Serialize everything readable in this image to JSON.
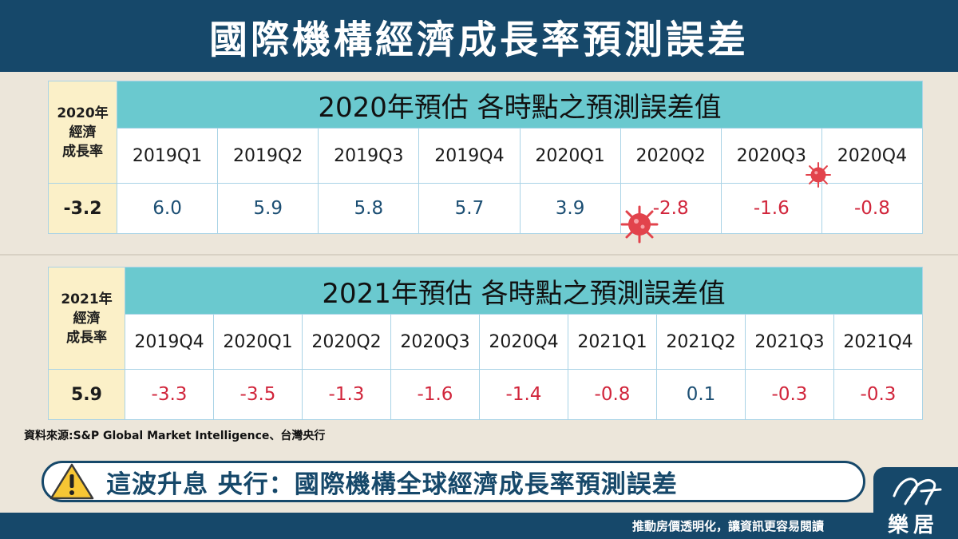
{
  "header": {
    "title": "國際機構經濟成長率預測誤差"
  },
  "table2020": {
    "corner": [
      "2020年",
      "經濟",
      "成長率"
    ],
    "title": "2020年預估 各時點之預測誤差值",
    "base": "-3.2",
    "quarters": [
      "2019Q1",
      "2019Q2",
      "2019Q3",
      "2019Q4",
      "2020Q1",
      "2020Q2",
      "2020Q3",
      "2020Q4"
    ],
    "values": [
      "6.0",
      "5.9",
      "5.8",
      "5.7",
      "3.9",
      "-2.8",
      "-1.6",
      "-0.8"
    ]
  },
  "table2021": {
    "corner": [
      "2021年",
      "經濟",
      "成長率"
    ],
    "title": "2021年預估 各時點之預測誤差值",
    "base": "5.9",
    "quarters": [
      "2019Q4",
      "2020Q1",
      "2020Q2",
      "2020Q3",
      "2020Q4",
      "2021Q1",
      "2021Q2",
      "2021Q3",
      "2021Q4"
    ],
    "values": [
      "-3.3",
      "-3.5",
      "-1.3",
      "-1.6",
      "-1.4",
      "-0.8",
      "0.1",
      "-0.3",
      "-0.3"
    ]
  },
  "source": "資料來源:S&P Global Market Intelligence、台灣央行",
  "banner": {
    "icon": "warning-icon",
    "text": "這波升息 央行：國際機構全球經濟成長率預測誤差"
  },
  "footer": {
    "slogan": "推動房價透明化，讓資訊更容易閱讀",
    "logo_text": "樂居"
  },
  "colors": {
    "navy": "#16486a",
    "teal": "#6ac9cf",
    "cream": "#fbf0c8",
    "positive": "#1b4e73",
    "negative": "#d1253b"
  }
}
